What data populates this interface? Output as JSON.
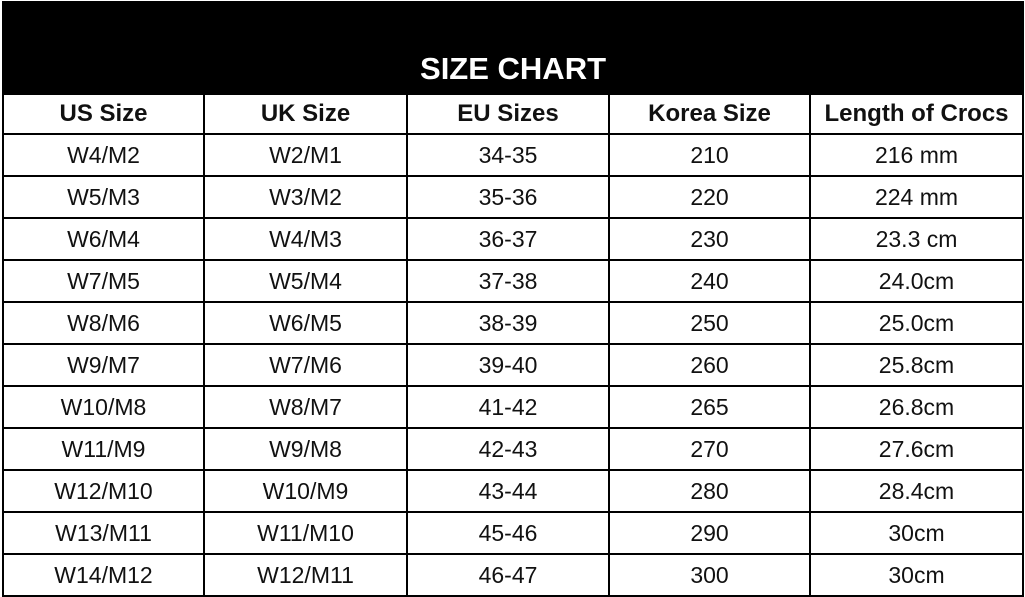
{
  "title": "SIZE CHART",
  "headers": [
    "US Size",
    "UK Size",
    "EU Sizes",
    "Korea Size",
    "Length of Crocs"
  ],
  "rows": [
    [
      "W4/M2",
      "W2/M1",
      "34-35",
      "210",
      "216 mm"
    ],
    [
      "W5/M3",
      "W3/M2",
      "35-36",
      "220",
      "224 mm"
    ],
    [
      "W6/M4",
      "W4/M3",
      "36-37",
      "230",
      "23.3 cm"
    ],
    [
      "W7/M5",
      "W5/M4",
      "37-38",
      "240",
      "24.0cm"
    ],
    [
      "W8/M6",
      "W6/M5",
      "38-39",
      "250",
      "25.0cm"
    ],
    [
      "W9/M7",
      "W7/M6",
      "39-40",
      "260",
      "25.8cm"
    ],
    [
      "W10/M8",
      "W8/M7",
      "41-42",
      "265",
      "26.8cm"
    ],
    [
      "W11/M9",
      "W9/M8",
      "42-43",
      "270",
      "27.6cm"
    ],
    [
      "W12/M10",
      "W10/M9",
      "43-44",
      "280",
      "28.4cm"
    ],
    [
      "W13/M11",
      "W11/M10",
      "45-46",
      "290",
      "30cm"
    ],
    [
      "W14/M12",
      "W12/M11",
      "46-47",
      "300",
      "30cm"
    ]
  ]
}
